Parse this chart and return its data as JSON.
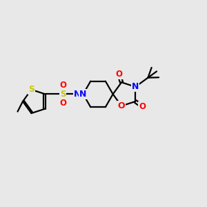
{
  "background_color": "#e8e8e8",
  "bond_color": "#000000",
  "atom_colors": {
    "S_thio": "#c8c800",
    "S_sulf": "#c8c800",
    "N": "#0000ff",
    "O": "#ff0000",
    "C": "#000000"
  },
  "bond_width": 1.6,
  "figsize": [
    3.0,
    3.0
  ],
  "dpi": 100
}
